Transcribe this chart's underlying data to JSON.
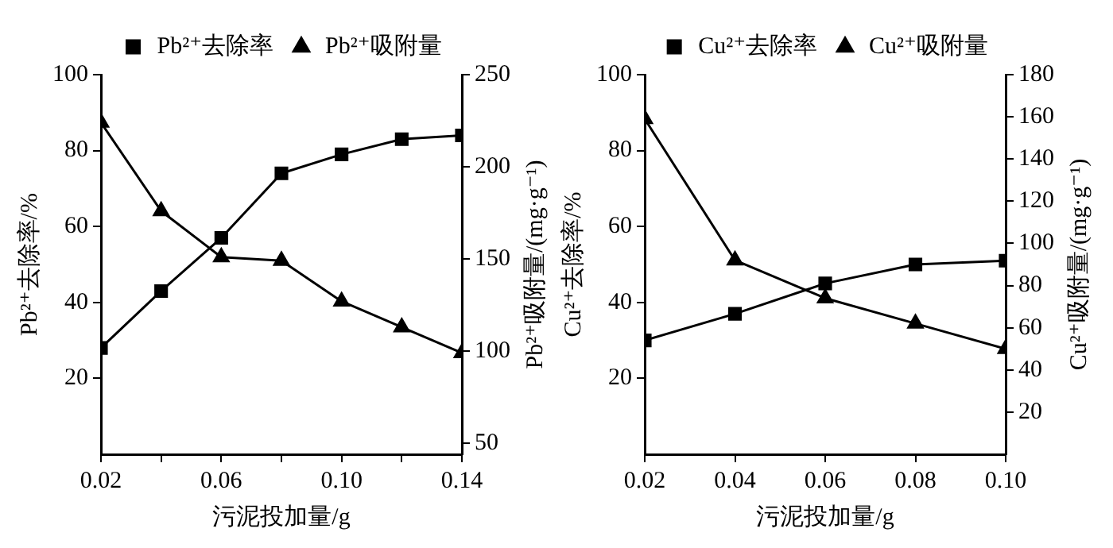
{
  "chart_data": [
    {
      "type": "line",
      "xlabel": "污泥投加量/g",
      "ylabel": "Pb²⁺去除率/%",
      "y2label": "Pb²⁺吸附量/(mg·g⁻¹)",
      "x": [
        0.02,
        0.04,
        0.06,
        0.08,
        0.1,
        0.12,
        0.14
      ],
      "series": [
        {
          "name": "Pb²⁺去除率",
          "color": "#000000",
          "marker": "square",
          "values": [
            28,
            43,
            57,
            74,
            79,
            83,
            84
          ]
        },
        {
          "name": "Pb²⁺吸附量",
          "color": "#000000",
          "marker": "triangle",
          "axis": "y2",
          "values": [
            224,
            176,
            151,
            149,
            127,
            113,
            99
          ]
        }
      ],
      "xlim": [
        0.02,
        0.14
      ],
      "xticks": [
        {
          "value": 0.02,
          "label": "0.02"
        },
        {
          "value": 0.04,
          "label": null
        },
        {
          "value": 0.06,
          "label": "0.06"
        },
        {
          "value": 0.08,
          "label": null
        },
        {
          "value": 0.1,
          "label": "0.10"
        },
        {
          "value": 0.12,
          "label": null
        },
        {
          "value": 0.14,
          "label": "0.14"
        }
      ],
      "ylim": [
        0,
        100
      ],
      "yticks": [
        20,
        40,
        60,
        80,
        100
      ],
      "y2lim": [
        44,
        250
      ],
      "y2ticks": [
        50,
        100,
        150,
        200,
        250
      ],
      "grid": false,
      "legend": "top",
      "line_style": "solid"
    },
    {
      "type": "line",
      "xlabel": "污泥投加量/g",
      "ylabel": "Cu²⁺去除率/%",
      "y2label": "Cu²⁺吸附量/(mg·g⁻¹)",
      "x": [
        0.02,
        0.04,
        0.06,
        0.08,
        0.1
      ],
      "series": [
        {
          "name": "Cu²⁺去除率",
          "color": "#000000",
          "marker": "square",
          "values": [
            30,
            37,
            45,
            50,
            51
          ]
        },
        {
          "name": "Cu²⁺吸附量",
          "color": "#000000",
          "marker": "triangle",
          "axis": "y2",
          "values": [
            159,
            92,
            74,
            62,
            50
          ]
        }
      ],
      "xlim": [
        0.02,
        0.1
      ],
      "xticks": [
        {
          "value": 0.02,
          "label": "0.02"
        },
        {
          "value": 0.04,
          "label": "0.04"
        },
        {
          "value": 0.06,
          "label": "0.06"
        },
        {
          "value": 0.08,
          "label": "0.08"
        },
        {
          "value": 0.1,
          "label": "0.10"
        }
      ],
      "ylim": [
        0,
        100
      ],
      "yticks": [
        20,
        40,
        60,
        80,
        100
      ],
      "y2lim": [
        0,
        180
      ],
      "y2ticks": [
        20,
        40,
        60,
        80,
        100,
        120,
        140,
        160,
        180
      ],
      "grid": false,
      "legend": "top",
      "line_style": "solid"
    }
  ]
}
